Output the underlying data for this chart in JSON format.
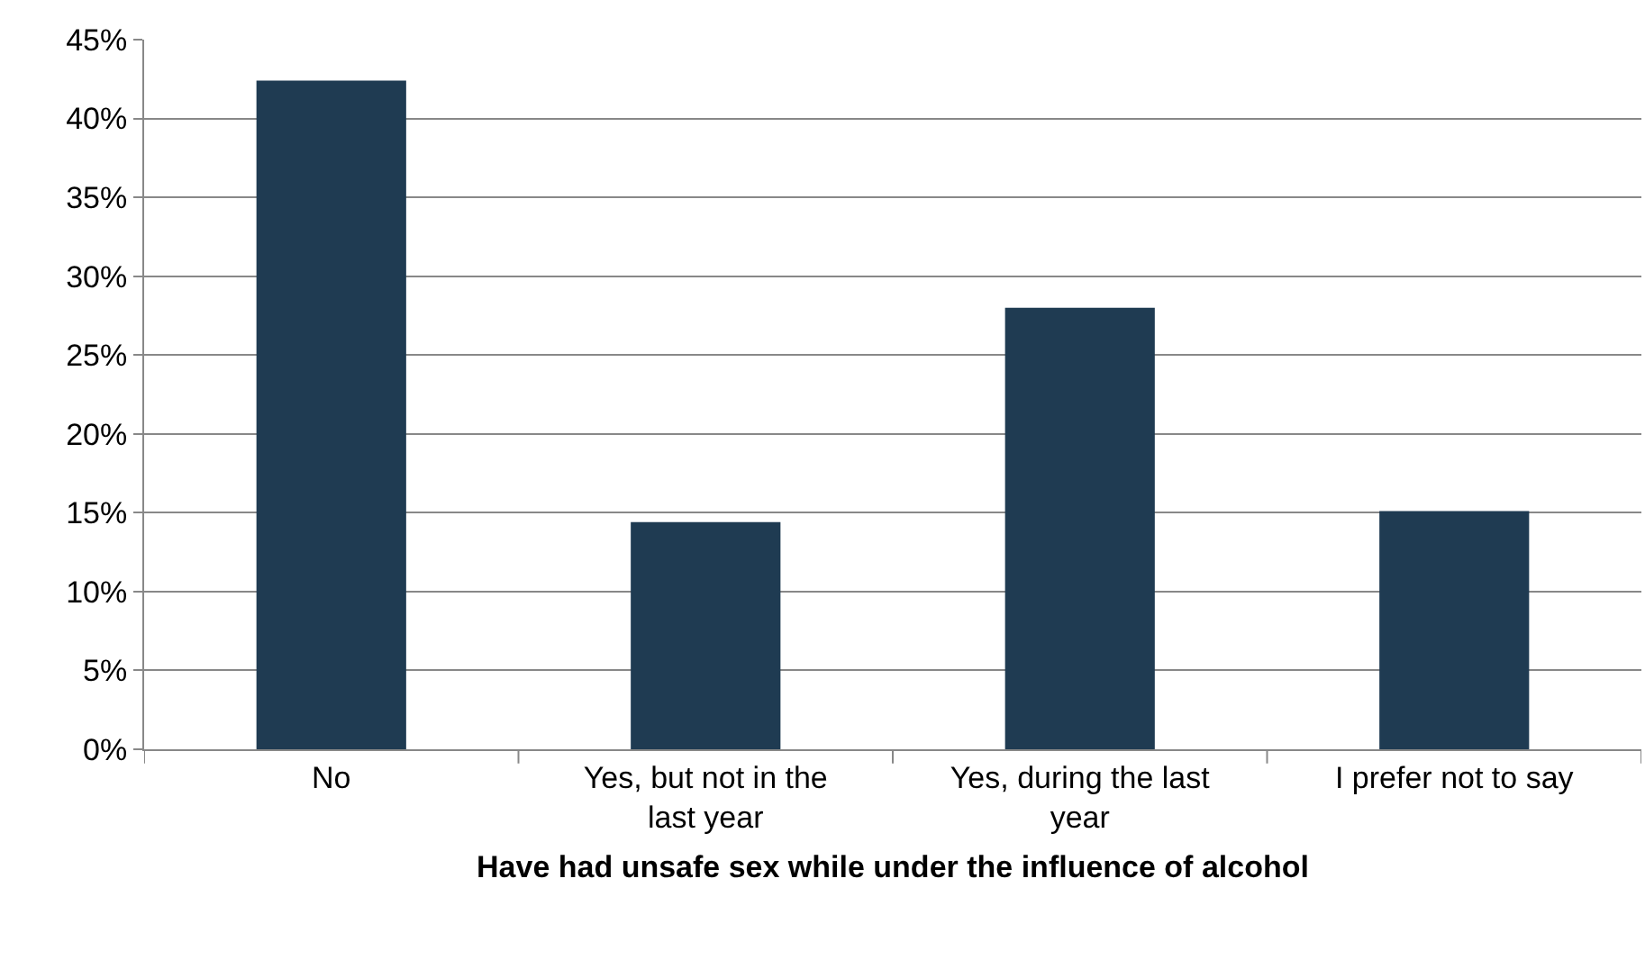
{
  "chart_data": {
    "type": "bar",
    "xlabel": "Have had unsafe sex while under the influence of alcohol",
    "categories": [
      "No",
      "Yes, but not in the last year",
      "Yes, during the last year",
      "I prefer not to say"
    ],
    "values": [
      42.4,
      14.4,
      28.0,
      15.1
    ],
    "color": "#1f3b52",
    "ylim": [
      0,
      45
    ],
    "yticks": [
      {
        "value": 0,
        "label": "0%"
      },
      {
        "value": 5,
        "label": "5%"
      },
      {
        "value": 10,
        "label": "10%"
      },
      {
        "value": 15,
        "label": "15%"
      },
      {
        "value": 20,
        "label": "20%"
      },
      {
        "value": 25,
        "label": "25%"
      },
      {
        "value": 30,
        "label": "30%"
      },
      {
        "value": 35,
        "label": "35%"
      },
      {
        "value": 40,
        "label": "40%"
      },
      {
        "value": 45,
        "label": "45%"
      }
    ],
    "grid": "y",
    "legend": false
  }
}
